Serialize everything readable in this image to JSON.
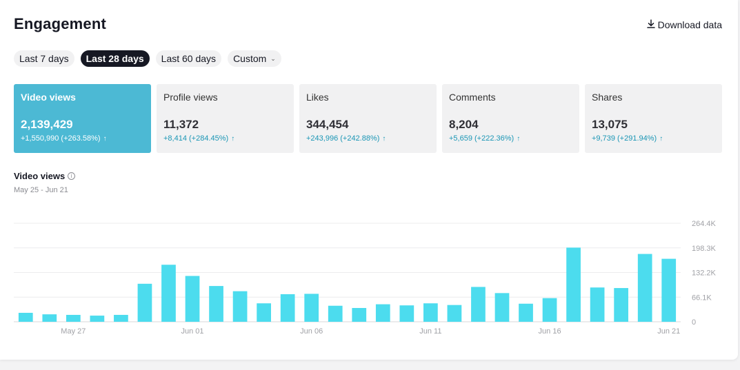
{
  "header": {
    "title": "Engagement",
    "download_label": "Download data",
    "download_icon": "download-icon"
  },
  "ranges": [
    {
      "label": "Last 7 days",
      "active": false
    },
    {
      "label": "Last 28 days",
      "active": true
    },
    {
      "label": "Last 60 days",
      "active": false
    }
  ],
  "custom": {
    "label": "Custom",
    "icon": "chevron-down-icon"
  },
  "stats": [
    {
      "label": "Video views",
      "value": "2,139,429",
      "delta": "+1,550,990 (+263.58%)",
      "active": true
    },
    {
      "label": "Profile views",
      "value": "11,372",
      "delta": "+8,414 (+284.45%)",
      "active": false
    },
    {
      "label": "Likes",
      "value": "344,454",
      "delta": "+243,996 (+242.88%)",
      "active": false
    },
    {
      "label": "Comments",
      "value": "8,204",
      "delta": "+5,659 (+222.36%)",
      "active": false
    },
    {
      "label": "Shares",
      "value": "13,075",
      "delta": "+9,739 (+291.94%)",
      "active": false
    }
  ],
  "colors": {
    "accent": "#4cb9d4",
    "bar": "#4cdcee",
    "delta": "#1a96b5",
    "active_pill": "#161823"
  },
  "chart_section": {
    "title": "Video views",
    "date_range": "May 25 - Jun 21",
    "info_icon": "info-icon"
  },
  "chart_data": {
    "type": "bar",
    "title": "Video views",
    "categories": [
      "May 25",
      "May 26",
      "May 27",
      "May 28",
      "May 29",
      "May 30",
      "May 31",
      "Jun 01",
      "Jun 02",
      "Jun 03",
      "Jun 04",
      "Jun 05",
      "Jun 06",
      "Jun 07",
      "Jun 08",
      "Jun 09",
      "Jun 10",
      "Jun 11",
      "Jun 12",
      "Jun 13",
      "Jun 14",
      "Jun 15",
      "Jun 16",
      "Jun 17",
      "Jun 18",
      "Jun 19",
      "Jun 20",
      "Jun 21"
    ],
    "values": [
      24000,
      20000,
      18500,
      16500,
      18500,
      102000,
      153000,
      123000,
      96000,
      82000,
      49500,
      74000,
      75000,
      43000,
      37000,
      47000,
      44000,
      49500,
      45000,
      93500,
      77000,
      48500,
      63500,
      199000,
      92000,
      90500,
      182000,
      169000
    ],
    "x_tick_labels": [
      "May 27",
      "Jun 01",
      "Jun 06",
      "Jun 11",
      "Jun 16",
      "Jun 21"
    ],
    "y_ticks": [
      0,
      66100,
      132200,
      198300,
      264400
    ],
    "y_tick_labels": [
      "0",
      "66.1K",
      "132.2K",
      "198.3K",
      "264.4K"
    ],
    "ylim": [
      0,
      264400
    ],
    "grid": true
  }
}
